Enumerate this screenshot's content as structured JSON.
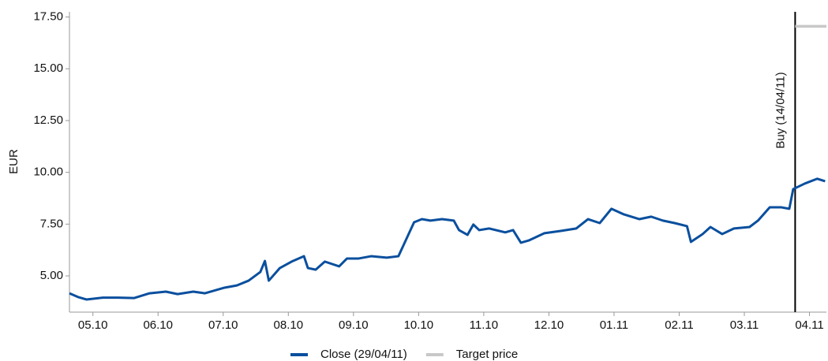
{
  "chart_data": {
    "type": "line",
    "ylabel": "EUR",
    "xlim": [
      -0.36,
      11.26
    ],
    "ylim": [
      3.25,
      17.75
    ],
    "xticks": [
      {
        "value": 0,
        "label": "05.10"
      },
      {
        "value": 1,
        "label": "06.10"
      },
      {
        "value": 2,
        "label": "07.10"
      },
      {
        "value": 3,
        "label": "08.10"
      },
      {
        "value": 4,
        "label": "09.10"
      },
      {
        "value": 5,
        "label": "10.10"
      },
      {
        "value": 6,
        "label": "11.10"
      },
      {
        "value": 7,
        "label": "12.10"
      },
      {
        "value": 8,
        "label": "01.11"
      },
      {
        "value": 9,
        "label": "02.11"
      },
      {
        "value": 10,
        "label": "03.11"
      },
      {
        "value": 11,
        "label": "04.11"
      }
    ],
    "yticks": [
      {
        "value": 5,
        "label": "5.00"
      },
      {
        "value": 7.5,
        "label": "7.50"
      },
      {
        "value": 10,
        "label": "10.00"
      },
      {
        "value": 12.5,
        "label": "12.50"
      },
      {
        "value": 15,
        "label": "15.00"
      },
      {
        "value": 17.5,
        "label": "17.50"
      }
    ],
    "grid": false,
    "legend": "bottom",
    "annotation": {
      "label": "Buy (14/04/11)",
      "x": 10.78
    },
    "series": [
      {
        "name": "Close (29/04/11)",
        "color": "#0a4f9e",
        "x": [
          -0.36,
          -0.22,
          -0.1,
          0.15,
          0.39,
          0.63,
          0.87,
          1.12,
          1.3,
          1.54,
          1.72,
          2.02,
          2.21,
          2.39,
          2.57,
          2.64,
          2.7,
          2.87,
          3.05,
          3.24,
          3.3,
          3.42,
          3.56,
          3.78,
          3.9,
          4.08,
          4.27,
          4.51,
          4.69,
          4.93,
          5.05,
          5.18,
          5.36,
          5.54,
          5.62,
          5.75,
          5.84,
          5.93,
          6.08,
          6.33,
          6.45,
          6.57,
          6.69,
          6.93,
          7.18,
          7.42,
          7.6,
          7.78,
          7.96,
          8.15,
          8.39,
          8.57,
          8.75,
          8.93,
          9.12,
          9.18,
          9.36,
          9.48,
          9.66,
          9.84,
          10.08,
          10.21,
          10.39,
          10.57,
          10.69,
          10.75,
          10.93,
          11.12,
          11.24
        ],
        "values": [
          4.16,
          3.97,
          3.86,
          3.95,
          3.95,
          3.93,
          4.16,
          4.24,
          4.12,
          4.24,
          4.16,
          4.43,
          4.54,
          4.77,
          5.19,
          5.72,
          4.77,
          5.38,
          5.69,
          5.95,
          5.38,
          5.3,
          5.69,
          5.46,
          5.84,
          5.84,
          5.95,
          5.88,
          5.95,
          7.59,
          7.74,
          7.67,
          7.74,
          7.67,
          7.21,
          6.98,
          7.48,
          7.21,
          7.29,
          7.1,
          7.21,
          6.6,
          6.71,
          7.06,
          7.17,
          7.29,
          7.74,
          7.55,
          8.24,
          7.97,
          7.74,
          7.86,
          7.67,
          7.55,
          7.4,
          6.64,
          7.02,
          7.36,
          7.02,
          7.29,
          7.36,
          7.67,
          8.31,
          8.31,
          8.24,
          9.19,
          9.46,
          9.69,
          9.57
        ]
      },
      {
        "name": "Target price",
        "color": "#c8c8c8",
        "x": [
          10.78,
          11.26
        ],
        "values": [
          17.05,
          17.05
        ]
      }
    ]
  }
}
